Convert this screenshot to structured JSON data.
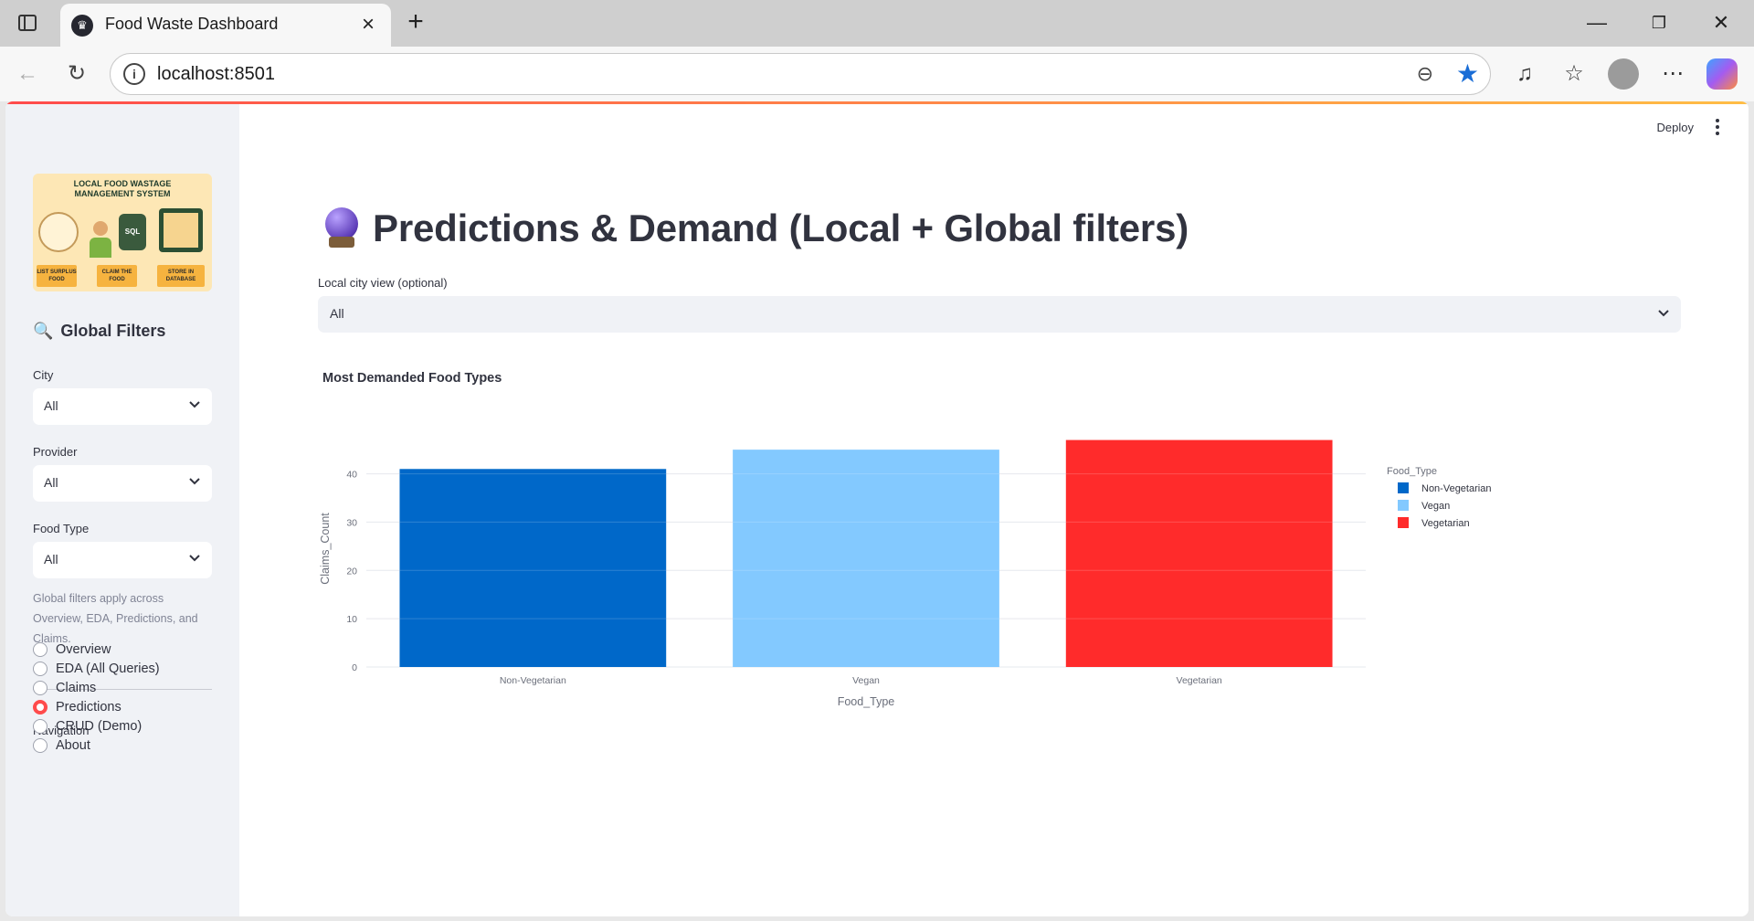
{
  "browser": {
    "tab_title": "Food Waste Dashboard",
    "url": "localhost:8501"
  },
  "sidebar": {
    "logo": {
      "title": "LOCAL FOOD WASTAGE MANAGEMENT SYSTEM",
      "sql": "SQL",
      "steps": [
        "LIST SURPLUS FOOD",
        "CLAIM THE FOOD",
        "STORE IN DATABASE"
      ]
    },
    "filters_title": "Global Filters",
    "filters": [
      {
        "label": "City",
        "value": "All"
      },
      {
        "label": "Provider",
        "value": "All"
      },
      {
        "label": "Food Type",
        "value": "All"
      }
    ],
    "note": "Global filters apply across Overview, EDA, Predictions, and Claims.",
    "nav_title": "Navigation",
    "nav_items": [
      {
        "label": "Overview",
        "selected": false
      },
      {
        "label": "EDA (All Queries)",
        "selected": false
      },
      {
        "label": "Claims",
        "selected": false
      },
      {
        "label": "Predictions",
        "selected": true
      },
      {
        "label": "CRUD (Demo)",
        "selected": false
      },
      {
        "label": "About",
        "selected": false
      }
    ]
  },
  "header": {
    "deploy_label": "Deploy"
  },
  "main": {
    "title": "Predictions & Demand (Local + Global filters)",
    "local_label": "Local city view (optional)",
    "local_value": "All"
  },
  "chart_data": {
    "type": "bar",
    "title": "Most Demanded Food Types",
    "categories": [
      "Non-Vegetarian",
      "Vegan",
      "Vegetarian"
    ],
    "values": [
      41,
      45,
      47
    ],
    "colors": [
      "#0068c9",
      "#83c9ff",
      "#ff2b2b"
    ],
    "xlabel": "Food_Type",
    "ylabel": "Claims_Count",
    "yticks": [
      0,
      10,
      20,
      30,
      40
    ],
    "ylim": [
      0,
      49
    ],
    "legend_title": "Food_Type",
    "legend_position": "top-right",
    "grid": true
  }
}
